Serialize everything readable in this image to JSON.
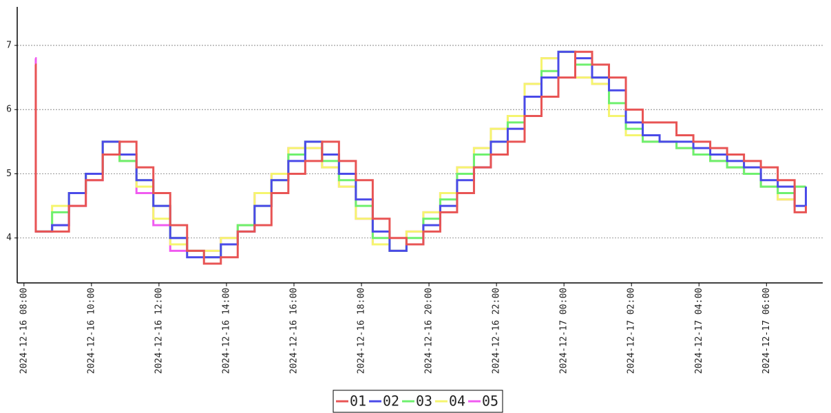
{
  "chart_data": {
    "type": "step-line",
    "x": [
      "2024-12-16 08:20",
      "2024-12-16 08:21",
      "2024-12-16 08:50",
      "2024-12-16 09:20",
      "2024-12-16 09:50",
      "2024-12-16 10:20",
      "2024-12-16 10:50",
      "2024-12-16 11:20",
      "2024-12-16 11:50",
      "2024-12-16 12:20",
      "2024-12-16 12:50",
      "2024-12-16 13:20",
      "2024-12-16 13:50",
      "2024-12-16 14:20",
      "2024-12-16 14:50",
      "2024-12-16 15:20",
      "2024-12-16 15:50",
      "2024-12-16 16:20",
      "2024-12-16 16:50",
      "2024-12-16 17:20",
      "2024-12-16 17:50",
      "2024-12-16 18:20",
      "2024-12-16 18:50",
      "2024-12-16 19:20",
      "2024-12-16 19:50",
      "2024-12-16 20:20",
      "2024-12-16 20:50",
      "2024-12-16 21:20",
      "2024-12-16 21:50",
      "2024-12-16 22:20",
      "2024-12-16 22:50",
      "2024-12-16 23:20",
      "2024-12-16 23:50",
      "2024-12-17 00:20",
      "2024-12-17 00:50",
      "2024-12-17 01:20",
      "2024-12-17 01:50",
      "2024-12-17 02:20",
      "2024-12-17 02:50",
      "2024-12-17 03:20",
      "2024-12-17 03:50",
      "2024-12-17 04:20",
      "2024-12-17 04:50",
      "2024-12-17 05:20",
      "2024-12-17 05:50",
      "2024-12-17 06:20",
      "2024-12-17 06:50",
      "2024-12-17 07:10"
    ],
    "series": [
      {
        "name": "01",
        "color": "#e85454",
        "values": [
          6.7,
          4.1,
          4.1,
          4.5,
          4.9,
          5.3,
          5.5,
          5.1,
          4.7,
          4.2,
          3.8,
          3.6,
          3.7,
          4.1,
          4.2,
          4.7,
          5.0,
          5.2,
          5.5,
          5.2,
          4.9,
          4.3,
          4.0,
          3.9,
          4.1,
          4.4,
          4.7,
          5.1,
          5.3,
          5.5,
          5.9,
          6.2,
          6.5,
          6.9,
          6.7,
          6.5,
          6.0,
          5.8,
          5.8,
          5.6,
          5.5,
          5.4,
          5.3,
          5.2,
          5.1,
          4.9,
          4.4,
          4.5
        ]
      },
      {
        "name": "02",
        "color": "#4a4ae8",
        "values": [
          4.1,
          4.1,
          4.2,
          4.7,
          5.0,
          5.5,
          5.3,
          4.9,
          4.5,
          4.0,
          3.7,
          3.7,
          3.9,
          4.1,
          4.5,
          4.9,
          5.2,
          5.5,
          5.3,
          5.0,
          4.6,
          4.1,
          3.8,
          3.9,
          4.2,
          4.5,
          4.9,
          5.1,
          5.5,
          5.7,
          6.2,
          6.5,
          6.9,
          6.8,
          6.5,
          6.3,
          5.8,
          5.6,
          5.5,
          5.5,
          5.4,
          5.3,
          5.2,
          5.1,
          4.9,
          4.8,
          4.5,
          4.8
        ]
      },
      {
        "name": "03",
        "color": "#6ef06e",
        "values": [
          4.1,
          4.1,
          4.4,
          4.7,
          5.0,
          5.5,
          5.2,
          4.9,
          4.5,
          4.0,
          3.8,
          3.7,
          3.9,
          4.2,
          4.5,
          4.9,
          5.3,
          5.5,
          5.2,
          4.9,
          4.5,
          4.0,
          3.8,
          4.0,
          4.3,
          4.6,
          5.0,
          5.3,
          5.5,
          5.8,
          6.2,
          6.6,
          6.9,
          6.7,
          6.5,
          6.1,
          5.7,
          5.5,
          5.5,
          5.4,
          5.3,
          5.2,
          5.1,
          5.0,
          4.8,
          4.7,
          4.8,
          4.8
        ]
      },
      {
        "name": "04",
        "color": "#f5f56e",
        "values": [
          4.1,
          4.1,
          4.5,
          4.7,
          5.0,
          5.5,
          5.2,
          4.8,
          4.3,
          3.9,
          3.8,
          3.8,
          4.0,
          4.2,
          4.7,
          5.0,
          5.4,
          5.4,
          5.1,
          4.8,
          4.3,
          3.9,
          3.8,
          4.1,
          4.4,
          4.7,
          5.1,
          5.4,
          5.7,
          5.9,
          6.4,
          6.8,
          6.9,
          6.5,
          6.4,
          5.9,
          5.6,
          5.5,
          5.5,
          5.4,
          5.3,
          5.2,
          5.1,
          5.0,
          4.8,
          4.6,
          4.8,
          4.8
        ]
      },
      {
        "name": "05",
        "color": "#f05af0",
        "values": [
          6.8,
          4.1,
          4.2,
          4.5,
          4.9,
          5.5,
          5.2,
          4.7,
          4.2,
          3.8,
          3.8,
          3.8,
          4.0,
          4.2,
          4.7,
          5.0,
          5.4,
          5.4,
          5.1,
          4.8,
          4.3,
          3.9,
          3.8,
          4.1,
          4.4,
          4.7,
          5.1,
          5.4,
          5.7,
          5.9,
          6.4,
          6.8,
          6.9,
          6.5,
          6.4,
          5.9,
          5.6,
          5.5,
          5.5,
          5.4,
          5.3,
          5.2,
          5.1,
          5.0,
          4.8,
          4.6,
          4.8,
          4.8
        ]
      }
    ],
    "xlim": [
      "2024-12-16 07:48",
      "2024-12-17 07:40"
    ],
    "xticks": [
      "2024-12-16 08:00",
      "2024-12-16 10:00",
      "2024-12-16 12:00",
      "2024-12-16 14:00",
      "2024-12-16 16:00",
      "2024-12-16 18:00",
      "2024-12-16 20:00",
      "2024-12-16 22:00",
      "2024-12-17 00:00",
      "2024-12-17 02:00",
      "2024-12-17 04:00",
      "2024-12-17 06:00"
    ],
    "ylim": [
      3.3,
      7.6
    ],
    "yticks": [
      4,
      5,
      6,
      7
    ],
    "grid": true,
    "legend": "bottom"
  }
}
